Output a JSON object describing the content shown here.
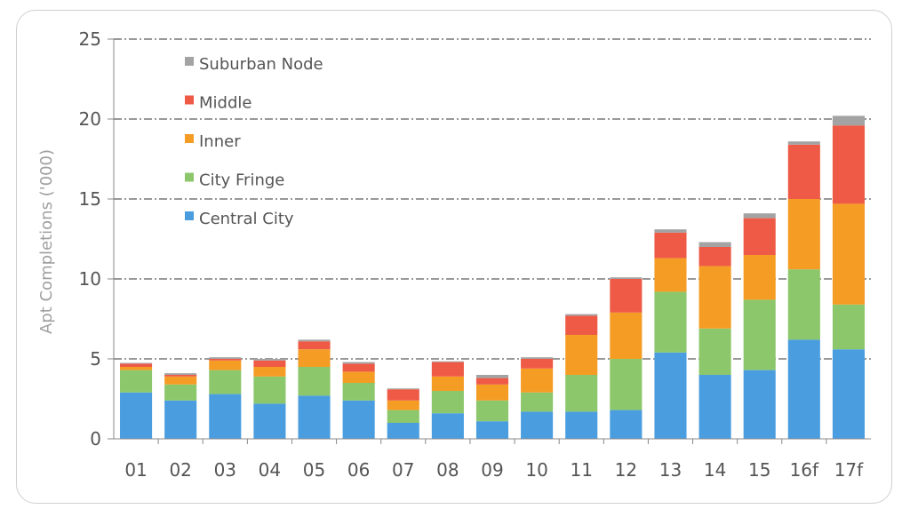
{
  "chart_data": {
    "type": "bar",
    "stacked": true,
    "categories": [
      "01",
      "02",
      "03",
      "04",
      "05",
      "06",
      "07",
      "08",
      "09",
      "10",
      "11",
      "12",
      "13",
      "14",
      "15",
      "16f",
      "17f"
    ],
    "series": [
      {
        "name": "Central City",
        "color": "#4a9ee0",
        "values": [
          2.9,
          2.4,
          2.8,
          2.2,
          2.7,
          2.4,
          1.0,
          1.6,
          1.1,
          1.7,
          1.7,
          1.8,
          5.4,
          4.0,
          4.3,
          6.2,
          5.6
        ]
      },
      {
        "name": "City Fringe",
        "color": "#8cc76b",
        "values": [
          1.4,
          1.0,
          1.5,
          1.7,
          1.8,
          1.1,
          0.8,
          1.4,
          1.3,
          1.2,
          2.3,
          3.2,
          3.8,
          2.9,
          4.4,
          4.4,
          2.8
        ]
      },
      {
        "name": "Inner",
        "color": "#f59c24",
        "values": [
          0.2,
          0.5,
          0.6,
          0.6,
          1.1,
          0.7,
          0.6,
          0.9,
          1.0,
          1.5,
          2.5,
          2.9,
          2.1,
          3.9,
          2.8,
          4.4,
          6.3
        ]
      },
      {
        "name": "Middle",
        "color": "#ee5a45",
        "values": [
          0.2,
          0.1,
          0.1,
          0.4,
          0.5,
          0.5,
          0.7,
          0.9,
          0.4,
          0.6,
          1.2,
          2.1,
          1.6,
          1.2,
          2.3,
          3.4,
          4.9
        ]
      },
      {
        "name": "Suburban Node",
        "color": "#a3a3a3",
        "values": [
          0.05,
          0.1,
          0.1,
          0.1,
          0.1,
          0.1,
          0.05,
          0.05,
          0.2,
          0.1,
          0.1,
          0.1,
          0.2,
          0.3,
          0.3,
          0.2,
          0.6
        ]
      }
    ],
    "ylabel": "Apt Completions ('000)",
    "ylim": [
      0,
      25
    ],
    "yticks": [
      "0",
      "5",
      "10",
      "15",
      "20",
      "25"
    ],
    "grid": true,
    "legend_position": "top-left",
    "legend_order": [
      "Suburban Node",
      "Middle",
      "Inner",
      "City Fringe",
      "Central City"
    ]
  }
}
